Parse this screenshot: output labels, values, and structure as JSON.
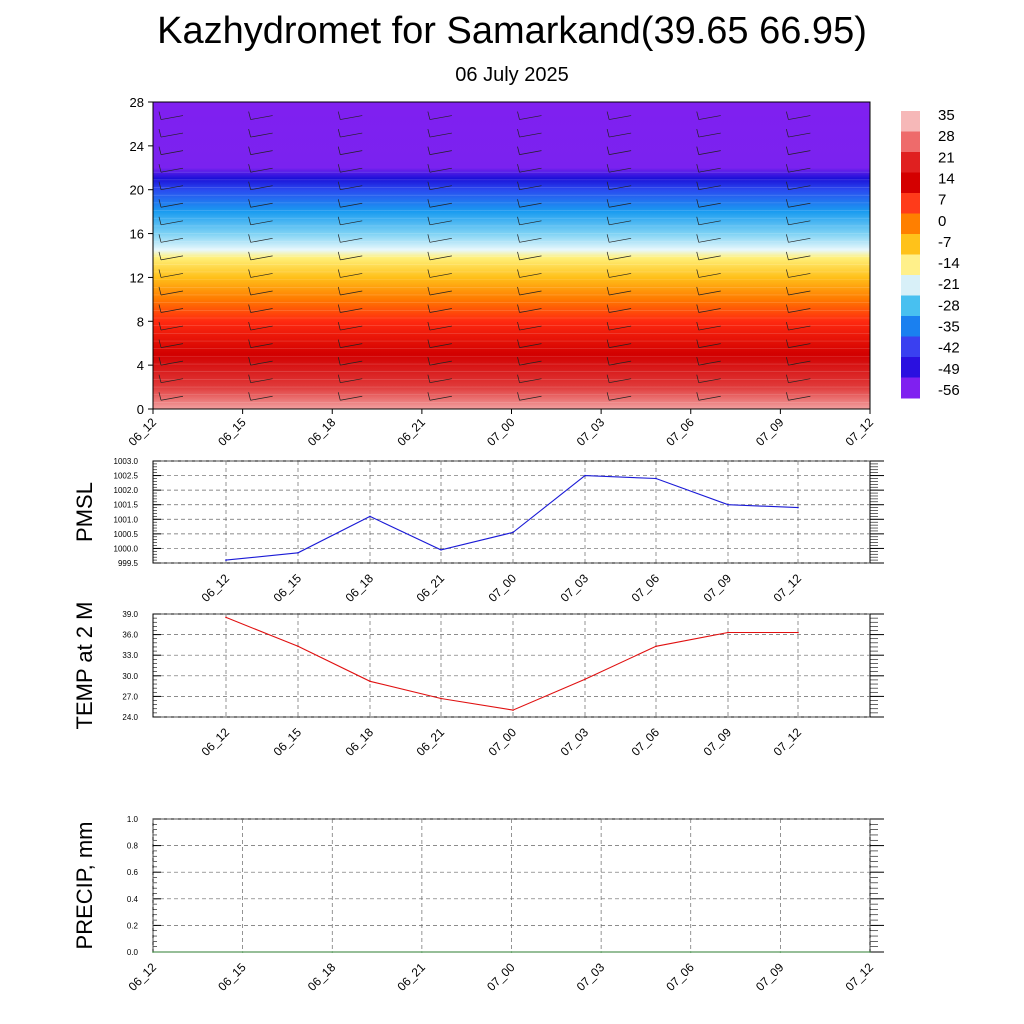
{
  "title": "Kazhydromet for Samarkand(39.65 66.95)",
  "subtitle": "06 July 2025",
  "colors": {
    "pmsl_line": "#1a1ad6",
    "temp_line": "#e01010",
    "precip_line": "#2e7d32",
    "grid": "#666666"
  },
  "chart_data": [
    {
      "type": "heatmap",
      "title": "",
      "xlabel": "",
      "ylabel": "",
      "x_ticks": [
        "06_12",
        "06_15",
        "06_18",
        "06_21",
        "07_00",
        "07_03",
        "07_06",
        "07_09",
        "07_12"
      ],
      "y_ticks": [
        "0",
        "4",
        "8",
        "12",
        "16",
        "20",
        "24",
        "28"
      ],
      "ylim": [
        0,
        28
      ],
      "colorbar_labels": [
        "35",
        "28",
        "21",
        "14",
        "7",
        "0",
        "-7",
        "-14",
        "-21",
        "-28",
        "-35",
        "-42",
        "-49",
        "-56"
      ],
      "colorbar_colors": [
        "#f6b8b8",
        "#ee6b6b",
        "#e02020",
        "#d40000",
        "#ff3b1a",
        "#ff7f00",
        "#ffc21a",
        "#fff08a",
        "#d8f0f8",
        "#48c0f0",
        "#1a80f0",
        "#3a40f0",
        "#2a10e0",
        "#8020f0"
      ],
      "field_profile": [
        {
          "level": 0,
          "color": "#f2a0a0"
        },
        {
          "level": 2,
          "color": "#e03a3a"
        },
        {
          "level": 5,
          "color": "#d20000"
        },
        {
          "level": 8,
          "color": "#ff2a10"
        },
        {
          "level": 10,
          "color": "#ff7a00"
        },
        {
          "level": 12,
          "color": "#ffc01a"
        },
        {
          "level": 13.8,
          "color": "#fff07a"
        },
        {
          "level": 14.5,
          "color": "#e8f8fc"
        },
        {
          "level": 16,
          "color": "#7ed2f4"
        },
        {
          "level": 18,
          "color": "#1a9cf0"
        },
        {
          "level": 20,
          "color": "#2a4af0"
        },
        {
          "level": 21,
          "color": "#1a10d8"
        },
        {
          "level": 22,
          "color": "#7a22ef"
        },
        {
          "level": 28,
          "color": "#8020f0"
        }
      ]
    },
    {
      "type": "line",
      "title": "",
      "xlabel": "",
      "ylabel": "PMSL",
      "x": [
        "06_12",
        "06_15",
        "06_18",
        "06_21",
        "07_00",
        "07_03",
        "07_06",
        "07_09",
        "07_12"
      ],
      "series": [
        {
          "values": [
            999.6,
            999.85,
            1001.1,
            999.95,
            1000.55,
            1002.5,
            1002.4,
            1001.5,
            1001.4
          ]
        }
      ],
      "ylim": [
        999.5,
        1003.0
      ],
      "y_ticks": [
        "999.5",
        "1000.0",
        "1000.5",
        "1001.0",
        "1001.5",
        "1002.0",
        "1002.5",
        "1003.0"
      ],
      "grid": true
    },
    {
      "type": "line",
      "title": "",
      "xlabel": "",
      "ylabel": "TEMP at 2 M",
      "x": [
        "06_12",
        "06_15",
        "06_18",
        "06_21",
        "07_00",
        "07_03",
        "07_06",
        "07_09",
        "07_12"
      ],
      "series": [
        {
          "values": [
            38.5,
            34.3,
            29.2,
            26.7,
            25.0,
            29.5,
            34.3,
            36.3,
            36.3
          ]
        }
      ],
      "ylim": [
        24.0,
        39.0
      ],
      "y_ticks": [
        "24.0",
        "27.0",
        "30.0",
        "33.0",
        "36.0",
        "39.0"
      ],
      "grid": true
    },
    {
      "type": "line",
      "title": "",
      "xlabel": "",
      "ylabel": "PRECIP, mm",
      "x": [
        "06_12",
        "06_15",
        "06_18",
        "06_21",
        "07_00",
        "07_03",
        "07_06",
        "07_09",
        "07_12"
      ],
      "series": [
        {
          "values": [
            0,
            0,
            0,
            0,
            0,
            0,
            0,
            0,
            0
          ]
        }
      ],
      "ylim": [
        0.0,
        1.0
      ],
      "y_ticks": [
        "0.0",
        "0.2",
        "0.4",
        "0.6",
        "0.8",
        "1.0"
      ],
      "grid": true
    }
  ]
}
